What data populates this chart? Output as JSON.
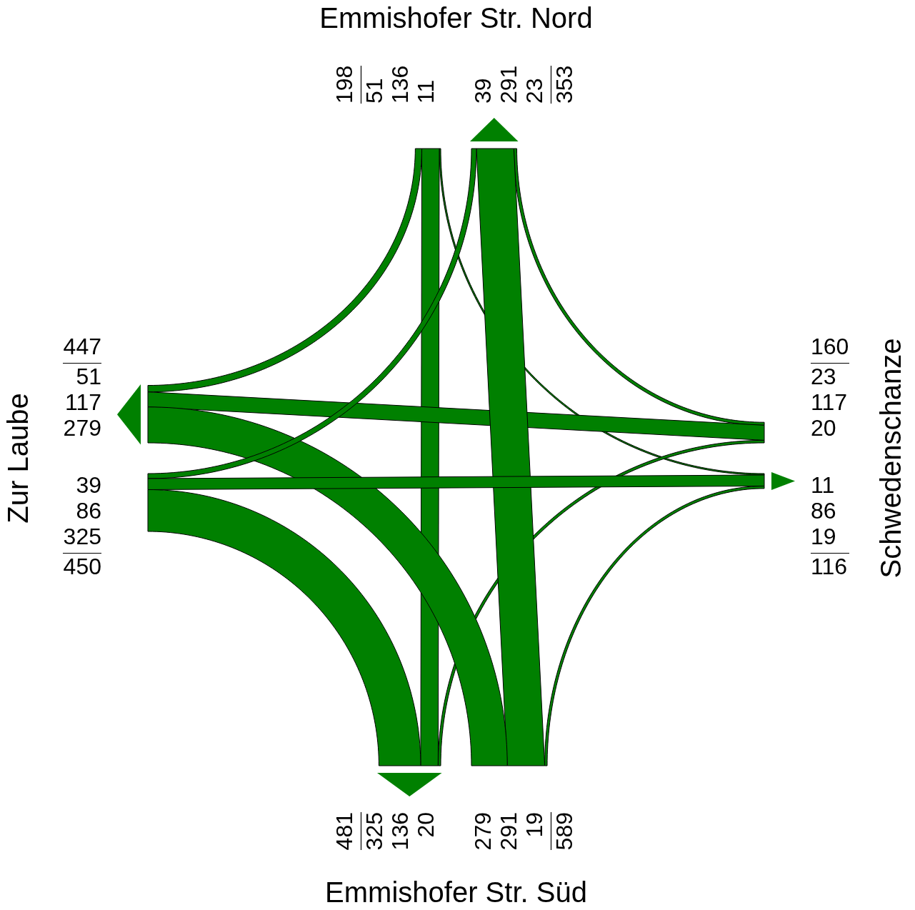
{
  "chart_data": {
    "type": "other",
    "categories": [
      "Emmishofer Str. Nord",
      "Schwedenschanze",
      "Emmishofer Str. Süd",
      "Zur Laube"
    ],
    "series": [
      {
        "color": "#008000",
        "values": [
          null,
          11,
          136,
          51
        ]
      },
      {
        "color": "#008000",
        "values": [
          23,
          null,
          20,
          117
        ]
      },
      {
        "color": "#008000",
        "values": [
          291,
          19,
          null,
          279
        ]
      },
      {
        "color": "#008000",
        "values": [
          39,
          86,
          325,
          null
        ]
      }
    ],
    "annotations": [
      "39",
      "291",
      "23",
      "11",
      "86",
      "19",
      "325",
      "136",
      "20",
      "51",
      "117",
      "279"
    ],
    "totals": [
      "198",
      "353",
      "160",
      "116",
      "589",
      "481",
      "450",
      "447"
    ],
    "data_labels": true
  }
}
